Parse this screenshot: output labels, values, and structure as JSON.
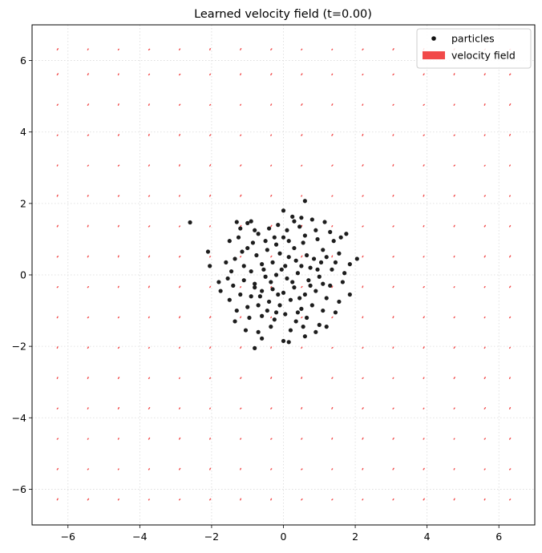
{
  "chart_data": {
    "type": "scatter",
    "title": "Learned velocity field (t=0.00)",
    "xlabel": "",
    "ylabel": "",
    "xlim": [
      -7,
      7
    ],
    "ylim": [
      -7,
      7
    ],
    "x_ticks": [
      -6,
      -4,
      -2,
      0,
      2,
      4,
      6
    ],
    "y_ticks": [
      -6,
      -4,
      -2,
      0,
      2,
      4,
      6
    ],
    "x_tick_labels": [
      "−6",
      "−4",
      "−2",
      "0",
      "2",
      "4",
      "6"
    ],
    "y_tick_labels": [
      "−6",
      "−4",
      "−2",
      "0",
      "2",
      "4",
      "6"
    ],
    "grid": true,
    "legend_position": "top-right",
    "legend": [
      {
        "label": "particles",
        "marker": "dot",
        "color": "#111111"
      },
      {
        "label": "velocity field",
        "marker": "patch",
        "color": "#f14a4a"
      }
    ],
    "series": [
      {
        "name": "particles",
        "kind": "scatter",
        "color": "#111111",
        "points": [
          [
            -2.6,
            1.47
          ],
          [
            -2.1,
            0.65
          ],
          [
            -2.05,
            0.25
          ],
          [
            2.05,
            0.45
          ],
          [
            0.6,
            2.07
          ],
          [
            -1.3,
            1.48
          ],
          [
            -1.0,
            1.45
          ],
          [
            -0.9,
            1.5
          ],
          [
            0.0,
            1.8
          ],
          [
            0.25,
            1.63
          ],
          [
            0.5,
            1.6
          ],
          [
            0.8,
            1.55
          ],
          [
            1.15,
            1.48
          ],
          [
            -1.2,
            1.3
          ],
          [
            -0.8,
            1.25
          ],
          [
            -0.4,
            1.3
          ],
          [
            -0.15,
            1.4
          ],
          [
            0.1,
            1.25
          ],
          [
            0.45,
            1.35
          ],
          [
            0.9,
            1.25
          ],
          [
            1.3,
            1.2
          ],
          [
            1.75,
            1.15
          ],
          [
            -1.5,
            0.95
          ],
          [
            -1.25,
            1.05
          ],
          [
            -0.85,
            0.9
          ],
          [
            -0.5,
            0.95
          ],
          [
            -0.2,
            0.85
          ],
          [
            0.15,
            0.95
          ],
          [
            0.55,
            0.9
          ],
          [
            0.95,
            1.0
          ],
          [
            1.4,
            0.95
          ],
          [
            1.6,
            1.05
          ],
          [
            -1.6,
            0.35
          ],
          [
            -1.35,
            0.45
          ],
          [
            -1.15,
            0.65
          ],
          [
            -0.75,
            0.55
          ],
          [
            -0.45,
            0.7
          ],
          [
            -0.1,
            0.6
          ],
          [
            0.3,
            0.75
          ],
          [
            0.65,
            0.55
          ],
          [
            1.1,
            0.7
          ],
          [
            1.55,
            0.6
          ],
          [
            1.85,
            0.3
          ],
          [
            -1.8,
            -0.2
          ],
          [
            -1.45,
            0.1
          ],
          [
            -1.1,
            0.25
          ],
          [
            -0.9,
            0.1
          ],
          [
            -0.6,
            0.3
          ],
          [
            -0.3,
            0.35
          ],
          [
            0.05,
            0.25
          ],
          [
            0.35,
            0.4
          ],
          [
            0.75,
            0.2
          ],
          [
            1.05,
            0.35
          ],
          [
            1.35,
            0.15
          ],
          [
            1.7,
            0.05
          ],
          [
            -1.75,
            -0.45
          ],
          [
            -1.4,
            -0.3
          ],
          [
            -1.1,
            -0.15
          ],
          [
            -0.8,
            -0.25
          ],
          [
            -0.5,
            -0.05
          ],
          [
            -0.2,
            0.0
          ],
          [
            0.1,
            -0.1
          ],
          [
            0.4,
            0.05
          ],
          [
            0.7,
            -0.15
          ],
          [
            1.0,
            -0.05
          ],
          [
            1.3,
            -0.3
          ],
          [
            1.65,
            -0.2
          ],
          [
            1.85,
            -0.55
          ],
          [
            -1.5,
            -0.7
          ],
          [
            -1.2,
            -0.55
          ],
          [
            -0.9,
            -0.6
          ],
          [
            -0.6,
            -0.45
          ],
          [
            -0.3,
            -0.4
          ],
          [
            0.0,
            -0.5
          ],
          [
            0.3,
            -0.35
          ],
          [
            0.6,
            -0.55
          ],
          [
            0.9,
            -0.45
          ],
          [
            1.2,
            -0.65
          ],
          [
            1.55,
            -0.75
          ],
          [
            -1.3,
            -1.0
          ],
          [
            -1.0,
            -0.9
          ],
          [
            -0.7,
            -0.85
          ],
          [
            -0.4,
            -0.75
          ],
          [
            -0.1,
            -0.85
          ],
          [
            0.2,
            -0.7
          ],
          [
            0.5,
            -0.95
          ],
          [
            0.8,
            -0.85
          ],
          [
            1.1,
            -1.0
          ],
          [
            1.45,
            -1.05
          ],
          [
            -1.35,
            -1.3
          ],
          [
            -0.95,
            -1.2
          ],
          [
            -0.6,
            -1.15
          ],
          [
            -0.25,
            -1.25
          ],
          [
            0.05,
            -1.1
          ],
          [
            0.35,
            -1.3
          ],
          [
            0.65,
            -1.2
          ],
          [
            1.0,
            -1.4
          ],
          [
            -1.05,
            -1.55
          ],
          [
            -0.7,
            -1.6
          ],
          [
            -0.35,
            -1.45
          ],
          [
            0.2,
            -1.55
          ],
          [
            0.55,
            -1.45
          ],
          [
            0.9,
            -1.6
          ],
          [
            -0.8,
            -2.05
          ],
          [
            -0.6,
            -1.78
          ],
          [
            0.0,
            -1.85
          ],
          [
            0.15,
            -1.88
          ],
          [
            0.6,
            -1.72
          ],
          [
            1.2,
            -1.45
          ],
          [
            -0.55,
            0.15
          ],
          [
            -0.35,
            -0.2
          ],
          [
            -0.05,
            0.15
          ],
          [
            0.25,
            -0.2
          ],
          [
            0.5,
            0.25
          ],
          [
            0.85,
            0.45
          ],
          [
            -0.65,
            -0.6
          ],
          [
            -0.15,
            -0.55
          ],
          [
            0.45,
            -0.65
          ],
          [
            0.15,
            0.5
          ],
          [
            -0.25,
            1.05
          ],
          [
            0.6,
            1.1
          ],
          [
            1.2,
            0.5
          ],
          [
            -1.0,
            0.75
          ],
          [
            -0.45,
            -1.0
          ],
          [
            0.75,
            -0.3
          ],
          [
            0.0,
            1.05
          ],
          [
            -0.8,
            -0.35
          ],
          [
            1.45,
            0.35
          ],
          [
            0.3,
            1.5
          ],
          [
            -0.2,
            -1.05
          ],
          [
            0.95,
            0.15
          ],
          [
            -1.55,
            -0.1
          ],
          [
            -0.7,
            1.15
          ],
          [
            0.4,
            -1.05
          ],
          [
            1.1,
            -0.25
          ]
        ]
      },
      {
        "name": "velocity field",
        "kind": "quiver",
        "color": "#f14a4a",
        "grid_x": [
          -6.3,
          -5.45,
          -4.6,
          -3.75,
          -2.9,
          -2.05,
          -1.2,
          -0.35,
          0.5,
          1.35,
          2.2,
          3.05,
          3.9,
          4.75,
          5.6,
          6.3
        ],
        "grid_y": [
          -6.3,
          -5.45,
          -4.6,
          -3.75,
          -2.9,
          -2.05,
          -1.2,
          -0.35,
          0.5,
          1.35,
          2.2,
          3.05,
          3.9,
          4.75,
          5.6,
          6.3
        ],
        "typical_vector": [
          0.02,
          0.03
        ]
      }
    ]
  }
}
